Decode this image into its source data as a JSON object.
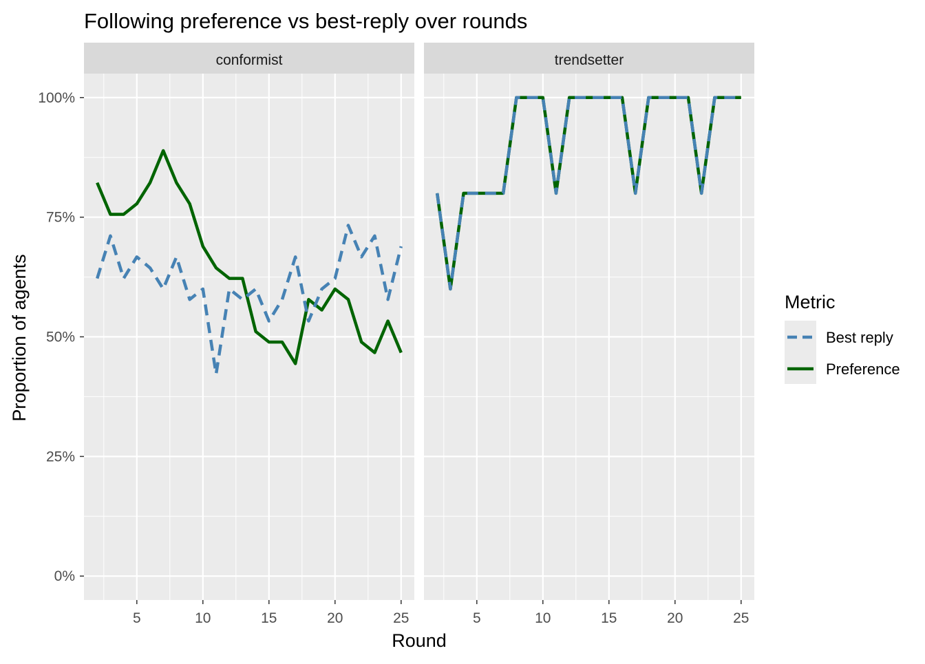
{
  "chart_data": {
    "type": "line",
    "title": "Following preference vs best-reply over rounds",
    "xlabel": "Round",
    "ylabel": "Proportion of agents",
    "xlim": [
      1,
      26
    ],
    "ylim": [
      -0.05,
      1.05
    ],
    "x_ticks": [
      5,
      10,
      15,
      20,
      25
    ],
    "y_ticks": [
      0,
      0.25,
      0.5,
      0.75,
      1
    ],
    "y_tick_labels": [
      "0%",
      "25%",
      "50%",
      "75%",
      "100%"
    ],
    "grid": true,
    "legend": {
      "title": "Metric",
      "placement": "right",
      "entries": [
        "Best reply",
        "Preference"
      ]
    },
    "colors": {
      "Best reply": "#4682B4",
      "Preference": "#006400"
    },
    "x": [
      2,
      3,
      4,
      5,
      6,
      7,
      8,
      9,
      10,
      11,
      12,
      13,
      14,
      15,
      16,
      17,
      18,
      19,
      20,
      21,
      22,
      23,
      24,
      25
    ],
    "panels": [
      {
        "name": "conformist",
        "series": [
          {
            "name": "Best reply",
            "values": [
              0.622,
              0.711,
              0.622,
              0.667,
              0.644,
              0.6,
              0.667,
              0.578,
              0.6,
              0.422,
              0.6,
              0.578,
              0.6,
              0.533,
              0.578,
              0.667,
              0.533,
              0.6,
              0.622,
              0.733,
              0.667,
              0.711,
              0.578,
              0.689
            ]
          },
          {
            "name": "Preference",
            "values": [
              0.822,
              0.756,
              0.756,
              0.778,
              0.822,
              0.889,
              0.822,
              0.778,
              0.689,
              0.644,
              0.622,
              0.622,
              0.511,
              0.489,
              0.489,
              0.444,
              0.578,
              0.556,
              0.6,
              0.578,
              0.489,
              0.467,
              0.533,
              0.467
            ]
          }
        ]
      },
      {
        "name": "trendsetter",
        "series": [
          {
            "name": "Best reply",
            "values": [
              0.8,
              0.6,
              0.8,
              0.8,
              0.8,
              0.8,
              1,
              1,
              1,
              0.8,
              1,
              1,
              1,
              1,
              1,
              0.8,
              1,
              1,
              1,
              1,
              0.8,
              1,
              1,
              1
            ]
          },
          {
            "name": "Preference",
            "values": [
              0.8,
              0.6,
              0.8,
              0.8,
              0.8,
              0.8,
              1,
              1,
              1,
              0.8,
              1,
              1,
              1,
              1,
              1,
              0.8,
              1,
              1,
              1,
              1,
              0.8,
              1,
              1,
              1
            ]
          }
        ]
      }
    ]
  }
}
